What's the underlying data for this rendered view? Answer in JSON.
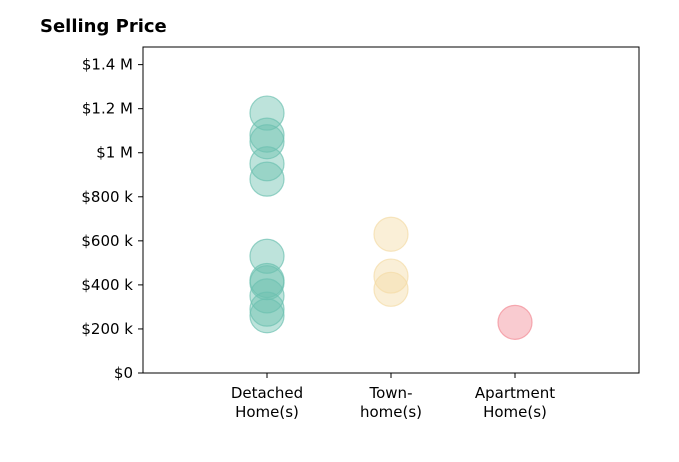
{
  "chart_data": {
    "type": "scatter",
    "title": "Selling Price",
    "xlabel": "",
    "ylabel": "",
    "categories": [
      {
        "line1": "Detached",
        "line2": "Home(s)"
      },
      {
        "line1": "Town-",
        "line2": "home(s)"
      },
      {
        "line1": "Apartment",
        "line2": "Home(s)"
      }
    ],
    "yticks": [
      {
        "value": 0,
        "label": "$0"
      },
      {
        "value": 200000,
        "label": "$200 k"
      },
      {
        "value": 400000,
        "label": "$400 k"
      },
      {
        "value": 600000,
        "label": "$600 k"
      },
      {
        "value": 800000,
        "label": "$800 k"
      },
      {
        "value": 1000000,
        "label": "$1 M"
      },
      {
        "value": 1200000,
        "label": "$1.2 M"
      },
      {
        "value": 1400000,
        "label": "$1.4 M"
      }
    ],
    "ylim": [
      0,
      1480000
    ],
    "xlim": [
      -1,
      3
    ],
    "grid": false,
    "series": [
      {
        "category_index": 0,
        "color": "#6cc0b0",
        "values": [
          1180000,
          1080000,
          1050000,
          950000,
          880000,
          530000,
          420000,
          410000,
          350000,
          290000,
          260000
        ]
      },
      {
        "category_index": 1,
        "color": "#f3dca6",
        "values": [
          630000,
          440000,
          380000
        ]
      },
      {
        "category_index": 2,
        "color": "#f28b96",
        "values": [
          230000
        ]
      }
    ]
  }
}
